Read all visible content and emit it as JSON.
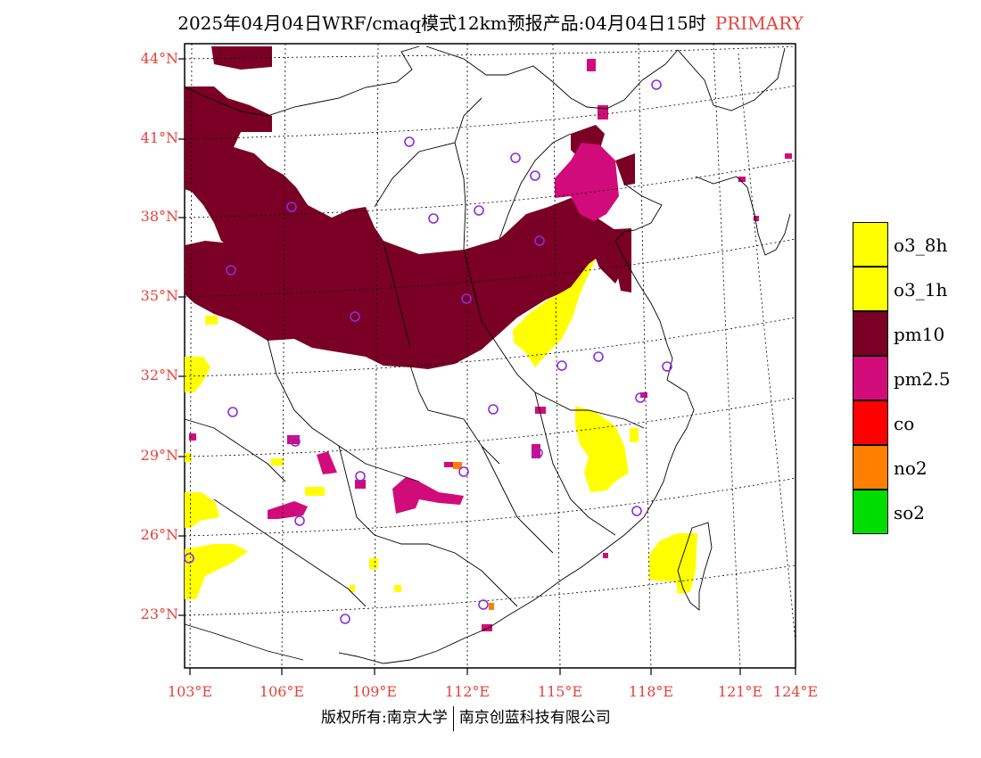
{
  "title": {
    "text": "2025年04月04日WRF/cmaq模式12km预报产品:04月04日15时",
    "tag": "PRIMARY"
  },
  "lat_labels": [
    "44°N",
    "41°N",
    "38°N",
    "35°N",
    "32°N",
    "29°N",
    "26°N",
    "23°N"
  ],
  "lon_labels": [
    "103°E",
    "106°E",
    "109°E",
    "112°E",
    "115°E",
    "118°E",
    "121°E",
    "124°E"
  ],
  "legend": [
    {
      "label": "o3_8h",
      "color": "#ffff00"
    },
    {
      "label": "o3_1h",
      "color": "#ffff00"
    },
    {
      "label": "pm10",
      "color": "#7a0026"
    },
    {
      "label": "pm2.5",
      "color": "#d20b7a"
    },
    {
      "label": "co",
      "color": "#ff0000"
    },
    {
      "label": "no2",
      "color": "#ff8000"
    },
    {
      "label": "so2",
      "color": "#00dd00"
    }
  ],
  "footer": {
    "left": "版权所有:南京大学",
    "right": "南京创蓝科技有限公司"
  },
  "colors": {
    "pm10": "#7a0026",
    "pm25": "#d20b7a",
    "o3": "#ffff00",
    "no2": "#ff8000",
    "station": "#8a2be2",
    "axis_label": "#e8403a"
  }
}
